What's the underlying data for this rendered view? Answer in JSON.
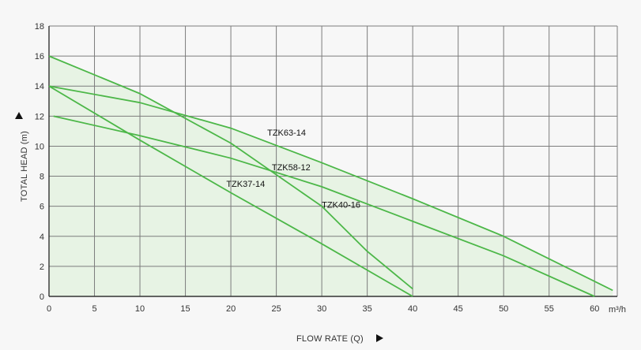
{
  "chart_data": {
    "type": "line",
    "xlabel": "FLOW RATE (Q)",
    "ylabel": "TOTAL HEAD (m)",
    "x_unit": "m³/h",
    "xlim": [
      0,
      62.5
    ],
    "ylim": [
      0,
      18
    ],
    "x_ticks": [
      0,
      5,
      10,
      15,
      20,
      25,
      30,
      35,
      40,
      45,
      50,
      55,
      60
    ],
    "y_ticks": [
      0,
      2,
      4,
      6,
      8,
      10,
      12,
      14,
      16,
      18
    ],
    "grid": true,
    "series": [
      {
        "name": "TZK63-14",
        "values": [
          [
            0,
            14
          ],
          [
            10,
            12.9
          ],
          [
            20,
            11.2
          ],
          [
            30,
            8.9
          ],
          [
            40,
            6.5
          ],
          [
            50,
            4
          ],
          [
            62,
            0.4
          ]
        ],
        "label_at": [
          24,
          10.7
        ]
      },
      {
        "name": "TZK58-12",
        "values": [
          [
            0.5,
            12
          ],
          [
            10,
            10.7
          ],
          [
            20,
            9.2
          ],
          [
            30,
            7.3
          ],
          [
            40,
            5
          ],
          [
            50,
            2.7
          ],
          [
            60,
            0
          ]
        ],
        "label_at": [
          24.5,
          8.4
        ]
      },
      {
        "name": "TZK37-14",
        "values": [
          [
            0,
            14
          ],
          [
            10,
            10.4
          ],
          [
            20,
            6.9
          ],
          [
            30,
            3.5
          ],
          [
            40,
            0
          ]
        ],
        "label_at": [
          19.5,
          7.3
        ]
      },
      {
        "name": "TZK40-16",
        "values": [
          [
            0,
            16
          ],
          [
            10,
            13.5
          ],
          [
            20,
            10.2
          ],
          [
            30,
            6
          ],
          [
            35,
            3
          ],
          [
            40,
            0.5
          ]
        ],
        "label_at": [
          30,
          5.9
        ]
      }
    ],
    "colors": {
      "line": "#4cb748",
      "fill": "#e7f3e4",
      "grid": "#7c7c7c",
      "axis": "#333333",
      "background": "#f7f7f7"
    }
  }
}
